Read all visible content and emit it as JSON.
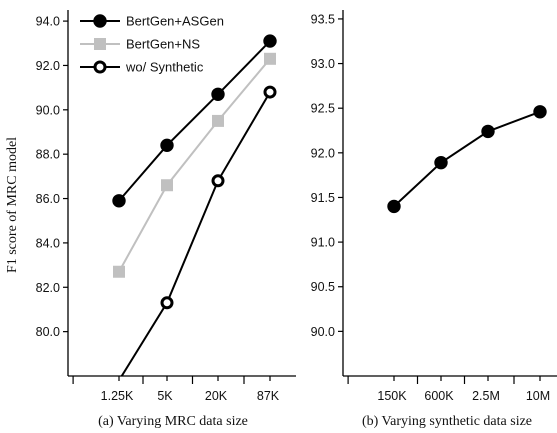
{
  "figure": {
    "ylabel": "F1 score of MRC model"
  },
  "chart_data": [
    {
      "type": "line",
      "caption": "(a) Varying MRC data size",
      "categories": [
        "1.25K",
        "5K",
        "20K",
        "87K"
      ],
      "ylim": [
        78.0,
        94.5
      ],
      "yticks": [
        80.0,
        82.0,
        84.0,
        86.0,
        88.0,
        90.0,
        92.0,
        94.0
      ],
      "ytick_labels": [
        "80.0",
        "82.0",
        "84.0",
        "86.0",
        "88.0",
        "90.0",
        "92.0",
        "94.0"
      ],
      "legend_position": "top-left",
      "series": [
        {
          "name": "BertGen+ASGen",
          "values": [
            85.9,
            88.4,
            90.7,
            93.1
          ],
          "color": "#000000",
          "marker": "circle-filled"
        },
        {
          "name": "BertGen+NS",
          "values": [
            82.7,
            86.6,
            89.5,
            92.3
          ],
          "color": "#c0c0c0",
          "marker": "square-filled"
        },
        {
          "name": "wo/ Synthetic",
          "values": [
            77.8,
            81.3,
            86.8,
            90.8
          ],
          "color": "#000000",
          "marker": "circle-open"
        }
      ]
    },
    {
      "type": "line",
      "caption": "(b) Varying synthetic data size",
      "categories": [
        "150K",
        "600K",
        "2.5M",
        "10M"
      ],
      "ylim": [
        89.5,
        93.6
      ],
      "yticks": [
        90.0,
        90.5,
        91.0,
        91.5,
        92.0,
        92.5,
        93.0,
        93.5
      ],
      "ytick_labels": [
        "90.0",
        "90.5",
        "91.0",
        "91.5",
        "92.0",
        "92.5",
        "93.0",
        "93.5"
      ],
      "series": [
        {
          "values": [
            91.4,
            91.89,
            92.24,
            92.46
          ],
          "color": "#000000",
          "marker": "circle-filled"
        }
      ]
    }
  ]
}
